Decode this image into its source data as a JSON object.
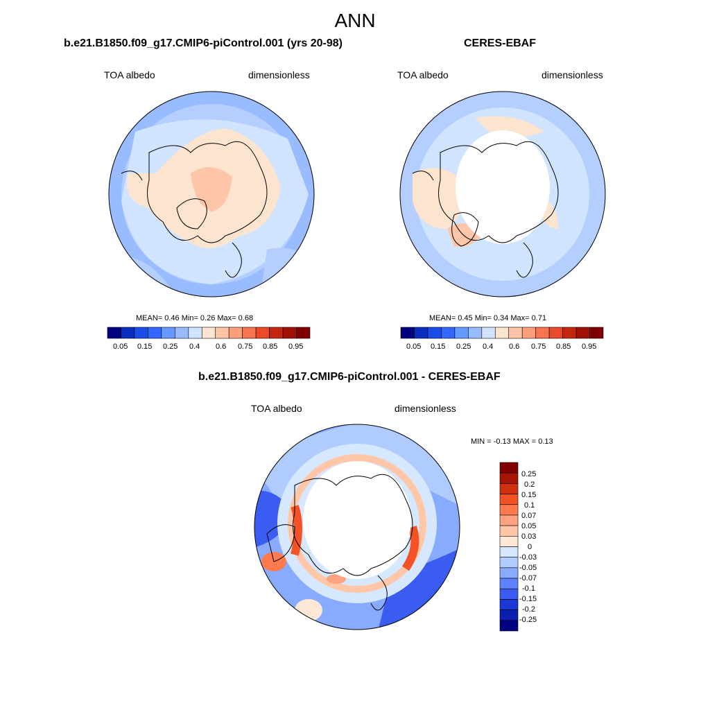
{
  "figure_title": "ANN",
  "colors": {
    "land_outline": "#000000",
    "abs_scale": [
      "#000080",
      "#0a2dbd",
      "#1a4ce6",
      "#3366ff",
      "#6699ff",
      "#99bbff",
      "#d0e4ff",
      "#fde4cf",
      "#fec5a8",
      "#fc9f7d",
      "#f8734f",
      "#e84a2a",
      "#c4270f",
      "#a11005",
      "#800000"
    ],
    "diff_scale": [
      "#800000",
      "#a81505",
      "#d1300e",
      "#f25225",
      "#ff7a4d",
      "#ffa27f",
      "#ffc7a8",
      "#fde8d6",
      "#d6e8ff",
      "#b0ccff",
      "#88aaff",
      "#5c82ff",
      "#3a5cf0",
      "#1a38d6",
      "#0a1eb0",
      "#000080"
    ]
  },
  "panels": [
    {
      "id": "model",
      "title": "b.e21.B1850.f09_g17.CMIP6-piControl.001 (yrs 20-98)",
      "left_label": "TOA albedo",
      "right_label": "dimensionless",
      "stats": "MEAN=   0.46  Min=    0.26  Max=    0.68"
    },
    {
      "id": "obs",
      "title": "CERES-EBAF",
      "left_label": "TOA albedo",
      "right_label": "dimensionless",
      "stats": "MEAN=   0.45  Min=    0.34  Max=    0.71"
    },
    {
      "id": "diff",
      "title": "b.e21.B1850.f09_g17.CMIP6-piControl.001 - CERES-EBAF",
      "left_label": "TOA albedo",
      "right_label": "dimensionless",
      "stats": "MIN =  -0.13 MAX =    0.13"
    }
  ],
  "colorbar_abs_ticks": [
    "0.05",
    "0.15",
    "0.25",
    "0.4",
    "0.6",
    "0.75",
    "0.85",
    "0.95"
  ],
  "colorbar_diff_ticks": [
    "0.25",
    "0.2",
    "0.15",
    "0.1",
    "0.07",
    "0.05",
    "0.03",
    "0",
    "-0.03",
    "-0.05",
    "-0.07",
    "-0.1",
    "-0.15",
    "-0.2",
    "-0.25"
  ]
}
